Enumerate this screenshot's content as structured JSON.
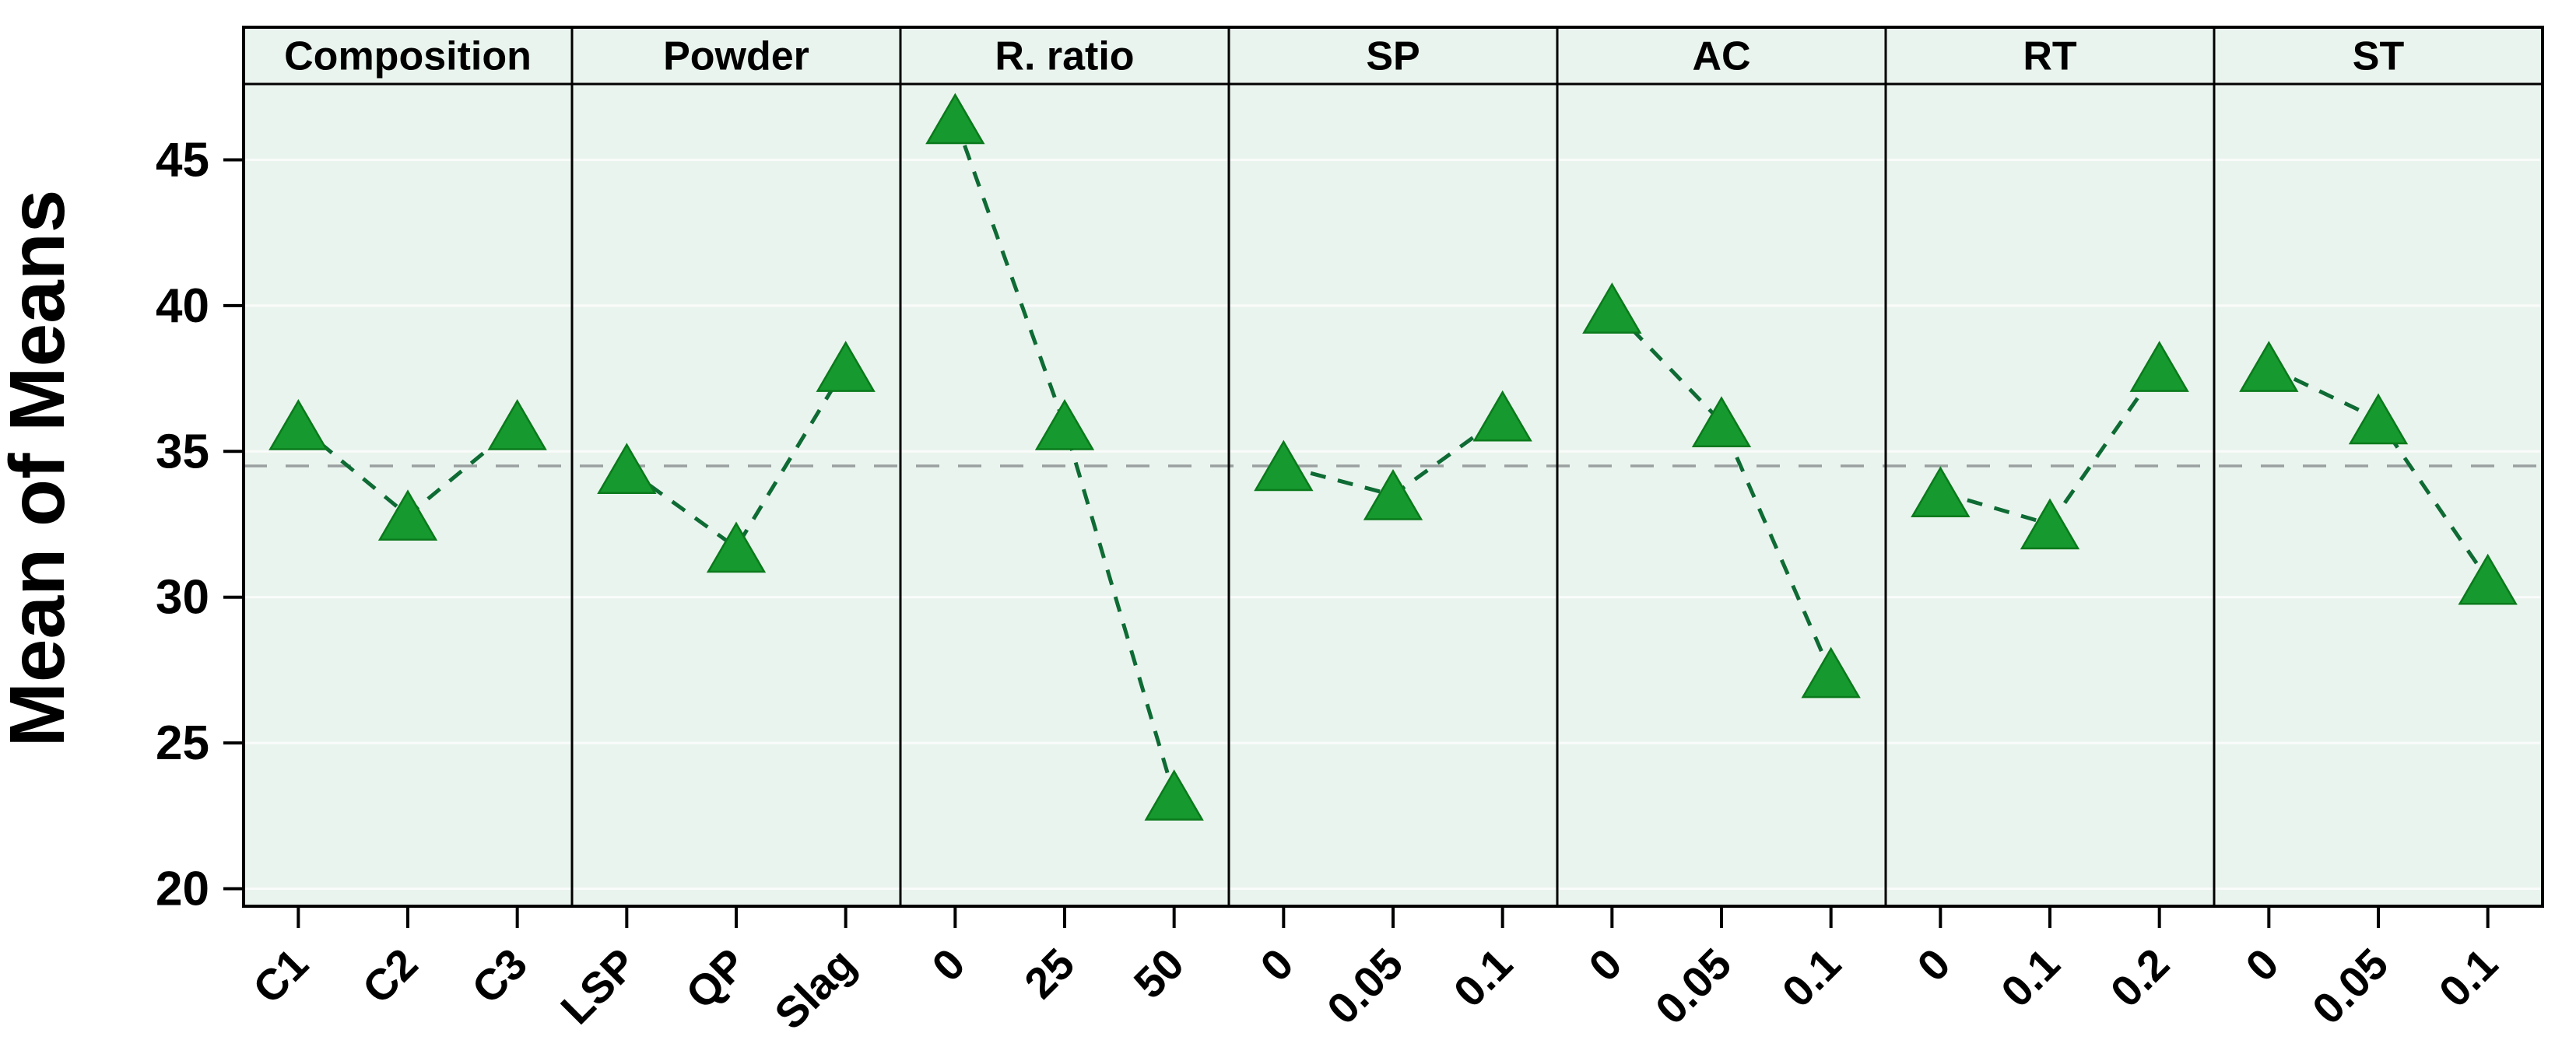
{
  "chart_data": {
    "type": "line",
    "subtype": "main-effects-plot",
    "ylabel": "Mean of Means",
    "yticks": [
      20,
      25,
      30,
      35,
      40,
      45
    ],
    "ylim": [
      19.4,
      47.6
    ],
    "reference_line": 34.5,
    "grid": "white-lines-at-ticks",
    "legend_position": "none",
    "marker": "filled-triangle-up",
    "line_style": "dashed",
    "panels": [
      {
        "factor": "Composition",
        "categories": [
          "C1",
          "C2",
          "C3"
        ],
        "values": [
          35.9,
          32.8,
          35.9
        ]
      },
      {
        "factor": "Powder",
        "categories": [
          "LSP",
          "QP",
          "Slag"
        ],
        "values": [
          34.4,
          31.7,
          37.9
        ]
      },
      {
        "factor": "R. ratio",
        "categories": [
          "0",
          "25",
          "50"
        ],
        "values": [
          46.4,
          35.9,
          23.2
        ]
      },
      {
        "factor": "SP",
        "categories": [
          "0",
          "0.05",
          "0.1"
        ],
        "values": [
          34.5,
          33.5,
          36.2
        ]
      },
      {
        "factor": "AC",
        "categories": [
          "0",
          "0.05",
          "0.1"
        ],
        "values": [
          39.9,
          36.0,
          27.4
        ]
      },
      {
        "factor": "RT",
        "categories": [
          "0",
          "0.1",
          "0.2"
        ],
        "values": [
          33.6,
          32.5,
          37.9
        ]
      },
      {
        "factor": "ST",
        "categories": [
          "0",
          "0.05",
          "0.1"
        ],
        "values": [
          37.9,
          36.1,
          30.6
        ]
      }
    ],
    "colors": {
      "panel_background": "#eaf4ee",
      "marker_fill": "#16992e",
      "marker_edge": "#0a7a1c",
      "series_line": "#0e6b34",
      "reference_line": "#9aa0a0",
      "border": "#000000",
      "gridline": "#ffffff",
      "text": "#000000",
      "page_background": "#ffffff"
    }
  }
}
